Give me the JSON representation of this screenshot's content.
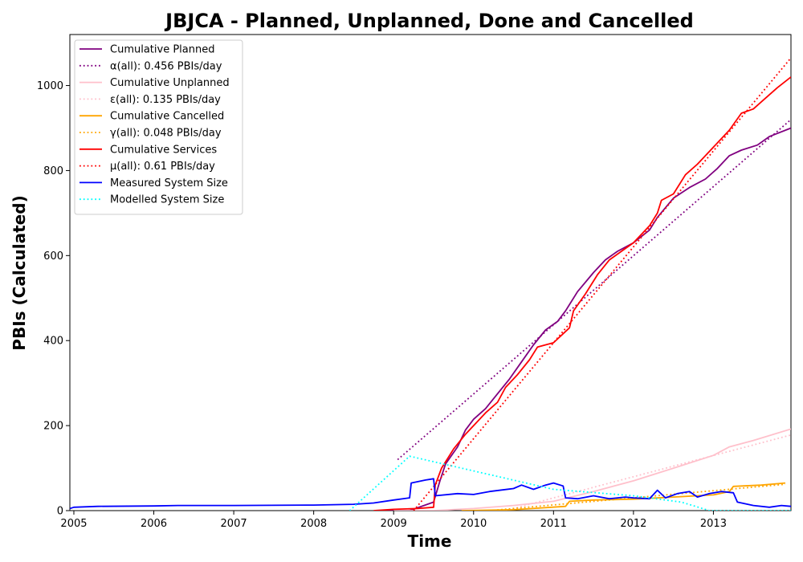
{
  "chart_data": {
    "type": "line",
    "title": "JBJCA - Planned, Unplanned, Done  and Cancelled",
    "xlabel": "Time",
    "ylabel": "PBIs (Calculated)",
    "xlim": [
      2004.95,
      2013.97
    ],
    "ylim": [
      0,
      1120
    ],
    "xticks": [
      2005,
      2006,
      2007,
      2008,
      2009,
      2010,
      2011,
      2012,
      2013
    ],
    "yticks": [
      0,
      200,
      400,
      600,
      800,
      1000
    ],
    "legend_position": "upper left",
    "series": [
      {
        "name": "Cumulative Planned",
        "color": "#800080",
        "style": "solid",
        "points": [
          [
            2008.8,
            0
          ],
          [
            2009.1,
            0
          ],
          [
            2009.2,
            0
          ],
          [
            2009.5,
            20
          ],
          [
            2009.58,
            70
          ],
          [
            2009.65,
            110
          ],
          [
            2009.8,
            150
          ],
          [
            2009.9,
            190
          ],
          [
            2010.0,
            215
          ],
          [
            2010.15,
            240
          ],
          [
            2010.3,
            275
          ],
          [
            2010.45,
            310
          ],
          [
            2010.6,
            350
          ],
          [
            2010.75,
            390
          ],
          [
            2010.9,
            425
          ],
          [
            2011.05,
            445
          ],
          [
            2011.15,
            470
          ],
          [
            2011.3,
            515
          ],
          [
            2011.5,
            560
          ],
          [
            2011.65,
            590
          ],
          [
            2011.8,
            610
          ],
          [
            2012.0,
            630
          ],
          [
            2012.2,
            660
          ],
          [
            2012.3,
            690
          ],
          [
            2012.5,
            735
          ],
          [
            2012.7,
            760
          ],
          [
            2012.9,
            780
          ],
          [
            2013.05,
            805
          ],
          [
            2013.2,
            835
          ],
          [
            2013.35,
            848
          ],
          [
            2013.55,
            860
          ],
          [
            2013.7,
            880
          ],
          [
            2013.97,
            900
          ]
        ]
      },
      {
        "name": "α(all): 0.456 PBIs/day",
        "color": "#800080",
        "style": "dotted",
        "points": [
          [
            2009.05,
            120
          ],
          [
            2013.97,
            920
          ]
        ]
      },
      {
        "name": "Cumulative Unplanned",
        "color": "#ffc0cb",
        "style": "solid",
        "points": [
          [
            2009.0,
            0
          ],
          [
            2009.5,
            0
          ],
          [
            2010.0,
            5
          ],
          [
            2010.5,
            12
          ],
          [
            2011.0,
            22
          ],
          [
            2011.5,
            45
          ],
          [
            2012.0,
            70
          ],
          [
            2012.5,
            100
          ],
          [
            2013.0,
            130
          ],
          [
            2013.2,
            150
          ],
          [
            2013.5,
            165
          ],
          [
            2013.97,
            192
          ]
        ]
      },
      {
        "name": "ε(all): 0.135 PBIs/day",
        "color": "#ffc0cb",
        "style": "dotted",
        "points": [
          [
            2010.4,
            0
          ],
          [
            2013.97,
            178
          ]
        ]
      },
      {
        "name": "Cumulative Cancelled",
        "color": "#ffa500",
        "style": "solid",
        "points": [
          [
            2009.85,
            0
          ],
          [
            2010.5,
            2
          ],
          [
            2011.15,
            10
          ],
          [
            2011.2,
            22
          ],
          [
            2011.5,
            25
          ],
          [
            2012.0,
            27
          ],
          [
            2012.5,
            32
          ],
          [
            2013.0,
            37
          ],
          [
            2013.2,
            45
          ],
          [
            2013.25,
            57
          ],
          [
            2013.6,
            60
          ],
          [
            2013.9,
            65
          ]
        ]
      },
      {
        "name": "γ(all): 0.048 PBIs/day",
        "color": "#ffa500",
        "style": "dotted",
        "points": [
          [
            2010.2,
            0
          ],
          [
            2013.9,
            62
          ]
        ]
      },
      {
        "name": "Cumulative Services",
        "color": "#ff0000",
        "style": "solid",
        "points": [
          [
            2008.75,
            0
          ],
          [
            2009.0,
            3
          ],
          [
            2009.3,
            5
          ],
          [
            2009.5,
            8
          ],
          [
            2009.52,
            60
          ],
          [
            2009.6,
            100
          ],
          [
            2009.75,
            145
          ],
          [
            2009.9,
            180
          ],
          [
            2010.0,
            200
          ],
          [
            2010.15,
            230
          ],
          [
            2010.3,
            255
          ],
          [
            2010.4,
            290
          ],
          [
            2010.55,
            320
          ],
          [
            2010.7,
            355
          ],
          [
            2010.8,
            385
          ],
          [
            2011.0,
            395
          ],
          [
            2011.2,
            430
          ],
          [
            2011.25,
            470
          ],
          [
            2011.4,
            510
          ],
          [
            2011.55,
            555
          ],
          [
            2011.7,
            590
          ],
          [
            2011.85,
            610
          ],
          [
            2012.0,
            630
          ],
          [
            2012.2,
            670
          ],
          [
            2012.3,
            700
          ],
          [
            2012.35,
            730
          ],
          [
            2012.5,
            745
          ],
          [
            2012.65,
            790
          ],
          [
            2012.8,
            815
          ],
          [
            2012.9,
            835
          ],
          [
            2013.05,
            865
          ],
          [
            2013.2,
            895
          ],
          [
            2013.35,
            935
          ],
          [
            2013.5,
            945
          ],
          [
            2013.65,
            970
          ],
          [
            2013.8,
            995
          ],
          [
            2013.97,
            1020
          ]
        ]
      },
      {
        "name": "μ(all): 0.61 PBIs/day",
        "color": "#ff0000",
        "style": "dotted",
        "points": [
          [
            2009.25,
            0
          ],
          [
            2013.97,
            1065
          ]
        ]
      },
      {
        "name": "Measured System Size",
        "color": "#0000ff",
        "style": "solid",
        "points": [
          [
            2004.95,
            5
          ],
          [
            2005.0,
            8
          ],
          [
            2005.3,
            10
          ],
          [
            2006.0,
            11
          ],
          [
            2006.3,
            12
          ],
          [
            2007.0,
            12
          ],
          [
            2008.0,
            13
          ],
          [
            2008.5,
            15
          ],
          [
            2008.75,
            18
          ],
          [
            2009.0,
            25
          ],
          [
            2009.2,
            30
          ],
          [
            2009.22,
            65
          ],
          [
            2009.4,
            72
          ],
          [
            2009.5,
            75
          ],
          [
            2009.52,
            35
          ],
          [
            2009.8,
            40
          ],
          [
            2010.0,
            38
          ],
          [
            2010.2,
            45
          ],
          [
            2010.5,
            52
          ],
          [
            2010.6,
            60
          ],
          [
            2010.75,
            50
          ],
          [
            2010.9,
            60
          ],
          [
            2011.0,
            65
          ],
          [
            2011.12,
            58
          ],
          [
            2011.15,
            30
          ],
          [
            2011.3,
            28
          ],
          [
            2011.5,
            35
          ],
          [
            2011.7,
            28
          ],
          [
            2011.9,
            32
          ],
          [
            2012.0,
            30
          ],
          [
            2012.2,
            28
          ],
          [
            2012.3,
            48
          ],
          [
            2012.4,
            30
          ],
          [
            2012.55,
            40
          ],
          [
            2012.7,
            45
          ],
          [
            2012.8,
            32
          ],
          [
            2012.95,
            40
          ],
          [
            2013.1,
            45
          ],
          [
            2013.25,
            42
          ],
          [
            2013.3,
            20
          ],
          [
            2013.5,
            12
          ],
          [
            2013.7,
            8
          ],
          [
            2013.85,
            12
          ],
          [
            2013.97,
            10
          ]
        ]
      },
      {
        "name": "Modelled System Size",
        "color": "#00ffff",
        "style": "dotted",
        "points": [
          [
            2008.45,
            0
          ],
          [
            2009.2,
            128
          ],
          [
            2011.0,
            50
          ],
          [
            2012.0,
            35
          ],
          [
            2012.6,
            20
          ],
          [
            2012.95,
            0
          ],
          [
            2013.97,
            0
          ]
        ]
      }
    ]
  }
}
